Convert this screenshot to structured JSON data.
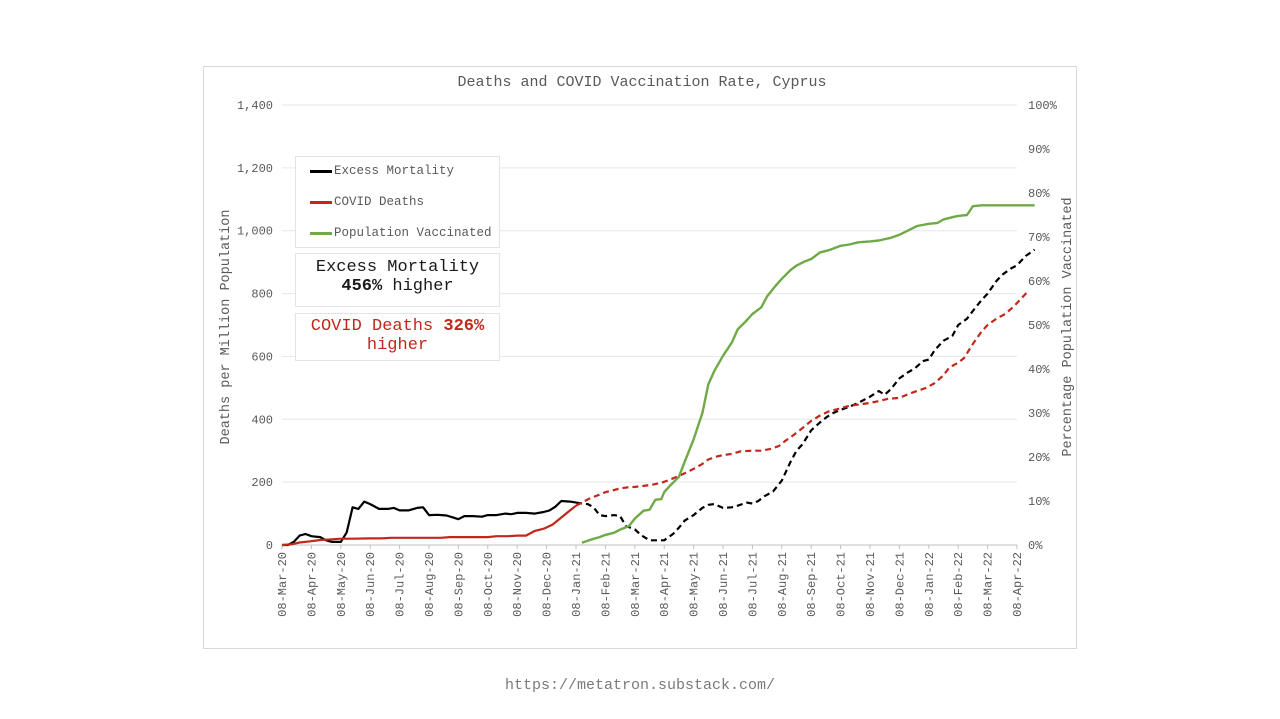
{
  "chart_data": {
    "type": "line",
    "title": "Deaths and COVID Vaccination Rate, Cyprus",
    "ylabel": "Deaths per Million Population",
    "y2label": "Percentage Population Vaccinated",
    "ylim": [
      0,
      1400
    ],
    "y2lim": [
      0,
      100
    ],
    "yticks": [
      "0",
      "200",
      "400",
      "600",
      "800",
      "1,000",
      "1,200",
      "1,400"
    ],
    "y2ticks": [
      "0%",
      "10%",
      "20%",
      "30%",
      "40%",
      "50%",
      "60%",
      "70%",
      "80%",
      "90%",
      "100%"
    ],
    "xticks": [
      "08-Mar-20",
      "08-Apr-20",
      "08-May-20",
      "08-Jun-20",
      "08-Jul-20",
      "08-Aug-20",
      "08-Sep-20",
      "08-Oct-20",
      "08-Nov-20",
      "08-Dec-20",
      "08-Jan-21",
      "08-Feb-21",
      "08-Mar-21",
      "08-Apr-21",
      "08-May-21",
      "08-Jun-21",
      "08-Jul-21",
      "08-Aug-21",
      "08-Sep-21",
      "08-Oct-21",
      "08-Nov-21",
      "08-Dec-21",
      "08-Jan-22",
      "08-Feb-22",
      "08-Mar-22",
      "08-Apr-22"
    ],
    "grid": true,
    "legend_position": "top-left",
    "series": [
      {
        "name": "Excess Mortality",
        "color": "#000000",
        "axis": "left",
        "dashed_from": 10.0,
        "points": [
          [
            0,
            0
          ],
          [
            0.2,
            0
          ],
          [
            0.4,
            10
          ],
          [
            0.6,
            30
          ],
          [
            0.8,
            35
          ],
          [
            1.0,
            28
          ],
          [
            1.3,
            25
          ],
          [
            1.5,
            15
          ],
          [
            1.7,
            10
          ],
          [
            2.0,
            10
          ],
          [
            2.2,
            40
          ],
          [
            2.4,
            120
          ],
          [
            2.6,
            115
          ],
          [
            2.8,
            138
          ],
          [
            3.0,
            130
          ],
          [
            3.3,
            115
          ],
          [
            3.6,
            115
          ],
          [
            3.8,
            118
          ],
          [
            4.0,
            110
          ],
          [
            4.3,
            110
          ],
          [
            4.6,
            118
          ],
          [
            4.8,
            120
          ],
          [
            5.0,
            95
          ],
          [
            5.3,
            96
          ],
          [
            5.6,
            94
          ],
          [
            5.8,
            88
          ],
          [
            6.0,
            82
          ],
          [
            6.2,
            92
          ],
          [
            6.5,
            92
          ],
          [
            6.8,
            90
          ],
          [
            7.0,
            95
          ],
          [
            7.3,
            95
          ],
          [
            7.6,
            100
          ],
          [
            7.8,
            98
          ],
          [
            8.0,
            102
          ],
          [
            8.3,
            102
          ],
          [
            8.6,
            100
          ],
          [
            8.9,
            105
          ],
          [
            9.1,
            110
          ],
          [
            9.3,
            122
          ],
          [
            9.5,
            140
          ],
          [
            9.8,
            138
          ],
          [
            10.0,
            135
          ],
          [
            10.2,
            132
          ],
          [
            10.4,
            130
          ],
          [
            10.6,
            120
          ],
          [
            10.8,
            95
          ],
          [
            11.0,
            92
          ],
          [
            11.3,
            95
          ],
          [
            11.5,
            92
          ],
          [
            11.7,
            60
          ],
          [
            12.0,
            50
          ],
          [
            12.2,
            32
          ],
          [
            12.5,
            15
          ],
          [
            12.8,
            15
          ],
          [
            13.0,
            15
          ],
          [
            13.3,
            35
          ],
          [
            13.5,
            55
          ],
          [
            13.7,
            78
          ],
          [
            14.0,
            95
          ],
          [
            14.3,
            118
          ],
          [
            14.5,
            128
          ],
          [
            14.7,
            130
          ],
          [
            15.0,
            118
          ],
          [
            15.3,
            120
          ],
          [
            15.5,
            125
          ],
          [
            15.8,
            135
          ],
          [
            16.0,
            132
          ],
          [
            16.2,
            140
          ],
          [
            16.4,
            155
          ],
          [
            16.7,
            170
          ],
          [
            17.0,
            205
          ],
          [
            17.3,
            265
          ],
          [
            17.5,
            300
          ],
          [
            17.7,
            320
          ],
          [
            18.0,
            365
          ],
          [
            18.3,
            390
          ],
          [
            18.5,
            405
          ],
          [
            18.7,
            418
          ],
          [
            19.0,
            430
          ],
          [
            19.3,
            440
          ],
          [
            19.6,
            452
          ],
          [
            20.0,
            472
          ],
          [
            20.3,
            490
          ],
          [
            20.5,
            478
          ],
          [
            20.7,
            495
          ],
          [
            21.0,
            530
          ],
          [
            21.3,
            550
          ],
          [
            21.5,
            560
          ],
          [
            21.8,
            585
          ],
          [
            22.0,
            590
          ],
          [
            22.2,
            620
          ],
          [
            22.5,
            650
          ],
          [
            22.8,
            665
          ],
          [
            23.0,
            700
          ],
          [
            23.3,
            720
          ],
          [
            23.5,
            745
          ],
          [
            23.8,
            780
          ],
          [
            24.0,
            800
          ],
          [
            24.3,
            840
          ],
          [
            24.5,
            860
          ],
          [
            24.8,
            880
          ],
          [
            25.0,
            890
          ],
          [
            25.3,
            920
          ],
          [
            25.5,
            933
          ],
          [
            25.6,
            940
          ]
        ]
      },
      {
        "name": "COVID Deaths",
        "color": "#c0281c",
        "axis": "left",
        "dashed_from": 10.0,
        "points": [
          [
            0,
            0
          ],
          [
            0.3,
            2
          ],
          [
            0.6,
            8
          ],
          [
            1.0,
            12
          ],
          [
            1.3,
            16
          ],
          [
            1.7,
            18
          ],
          [
            2.0,
            20
          ],
          [
            2.4,
            20
          ],
          [
            3.0,
            21
          ],
          [
            3.4,
            21
          ],
          [
            3.7,
            23
          ],
          [
            4.0,
            23
          ],
          [
            4.5,
            23
          ],
          [
            5.0,
            23
          ],
          [
            5.4,
            23
          ],
          [
            5.7,
            25
          ],
          [
            6.0,
            25
          ],
          [
            6.5,
            25
          ],
          [
            7.0,
            25
          ],
          [
            7.3,
            28
          ],
          [
            7.7,
            28
          ],
          [
            8.0,
            30
          ],
          [
            8.3,
            30
          ],
          [
            8.6,
            45
          ],
          [
            8.9,
            52
          ],
          [
            9.2,
            65
          ],
          [
            9.4,
            80
          ],
          [
            9.6,
            95
          ],
          [
            9.8,
            110
          ],
          [
            10.0,
            125
          ],
          [
            10.3,
            140
          ],
          [
            10.5,
            150
          ],
          [
            10.8,
            160
          ],
          [
            11.0,
            168
          ],
          [
            11.3,
            175
          ],
          [
            11.5,
            180
          ],
          [
            11.8,
            184
          ],
          [
            12.0,
            185
          ],
          [
            12.3,
            188
          ],
          [
            12.6,
            192
          ],
          [
            12.9,
            198
          ],
          [
            13.2,
            208
          ],
          [
            13.5,
            220
          ],
          [
            13.8,
            233
          ],
          [
            14.0,
            242
          ],
          [
            14.3,
            258
          ],
          [
            14.5,
            272
          ],
          [
            14.8,
            282
          ],
          [
            15.0,
            286
          ],
          [
            15.3,
            290
          ],
          [
            15.6,
            298
          ],
          [
            16.0,
            300
          ],
          [
            16.3,
            300
          ],
          [
            16.6,
            305
          ],
          [
            16.9,
            315
          ],
          [
            17.1,
            330
          ],
          [
            17.4,
            350
          ],
          [
            17.7,
            372
          ],
          [
            18.0,
            395
          ],
          [
            18.3,
            412
          ],
          [
            18.6,
            425
          ],
          [
            19.0,
            435
          ],
          [
            19.3,
            443
          ],
          [
            19.7,
            448
          ],
          [
            20.0,
            452
          ],
          [
            20.3,
            458
          ],
          [
            20.6,
            465
          ],
          [
            21.0,
            468
          ],
          [
            21.3,
            480
          ],
          [
            21.6,
            490
          ],
          [
            21.9,
            500
          ],
          [
            22.2,
            515
          ],
          [
            22.5,
            540
          ],
          [
            22.7,
            565
          ],
          [
            23.0,
            580
          ],
          [
            23.2,
            595
          ],
          [
            23.5,
            640
          ],
          [
            23.8,
            680
          ],
          [
            24.0,
            700
          ],
          [
            24.3,
            720
          ],
          [
            24.6,
            735
          ],
          [
            24.9,
            760
          ],
          [
            25.0,
            770
          ],
          [
            25.2,
            790
          ],
          [
            25.3,
            800
          ],
          [
            25.4,
            808
          ]
        ]
      },
      {
        "name": "Population Vaccinated",
        "color": "#70a947",
        "axis": "right",
        "points": [
          [
            10.2,
            0.5
          ],
          [
            10.5,
            1.2
          ],
          [
            10.8,
            1.8
          ],
          [
            11.0,
            2.3
          ],
          [
            11.3,
            2.8
          ],
          [
            11.5,
            3.5
          ],
          [
            11.8,
            4.3
          ],
          [
            12.0,
            6.0
          ],
          [
            12.3,
            7.8
          ],
          [
            12.5,
            8.0
          ],
          [
            12.7,
            10.3
          ],
          [
            12.9,
            10.4
          ],
          [
            13.0,
            12.0
          ],
          [
            13.2,
            13.5
          ],
          [
            13.5,
            15.5
          ],
          [
            13.7,
            19.0
          ],
          [
            14.0,
            24.0
          ],
          [
            14.3,
            30.0
          ],
          [
            14.5,
            36.5
          ],
          [
            14.7,
            39.5
          ],
          [
            15.0,
            43.0
          ],
          [
            15.3,
            46.0
          ],
          [
            15.5,
            49.0
          ],
          [
            15.8,
            51.0
          ],
          [
            16.0,
            52.5
          ],
          [
            16.3,
            54.0
          ],
          [
            16.5,
            56.5
          ],
          [
            16.8,
            59.0
          ],
          [
            17.0,
            60.5
          ],
          [
            17.3,
            62.5
          ],
          [
            17.5,
            63.5
          ],
          [
            17.8,
            64.5
          ],
          [
            18.0,
            65.0
          ],
          [
            18.3,
            66.5
          ],
          [
            18.6,
            67.0
          ],
          [
            19.0,
            68.0
          ],
          [
            19.3,
            68.3
          ],
          [
            19.6,
            68.8
          ],
          [
            20.0,
            69.0
          ],
          [
            20.3,
            69.2
          ],
          [
            20.7,
            69.8
          ],
          [
            21.0,
            70.5
          ],
          [
            21.3,
            71.5
          ],
          [
            21.6,
            72.5
          ],
          [
            22.0,
            73.0
          ],
          [
            22.3,
            73.2
          ],
          [
            22.5,
            74.0
          ],
          [
            22.8,
            74.5
          ],
          [
            23.0,
            74.8
          ],
          [
            23.3,
            75.0
          ],
          [
            23.5,
            77.0
          ],
          [
            23.8,
            77.2
          ],
          [
            24.0,
            77.2
          ],
          [
            24.5,
            77.2
          ],
          [
            25.0,
            77.2
          ],
          [
            25.5,
            77.2
          ],
          [
            25.6,
            77.2
          ]
        ]
      }
    ]
  },
  "annotations": {
    "excess": {
      "line1": "Excess Mortality",
      "pct": "456%",
      "suffix": " higher"
    },
    "covid": {
      "label": "COVID Deaths ",
      "pct": "326%",
      "line2": "higher"
    }
  },
  "source": "https://metatron.substack.com/"
}
